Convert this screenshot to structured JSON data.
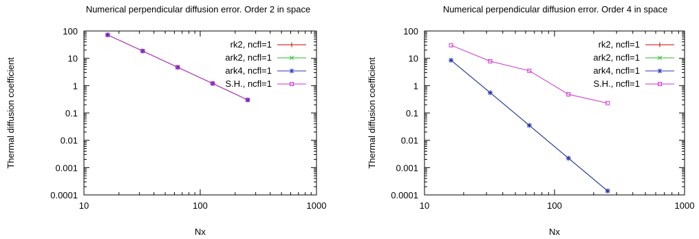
{
  "chart_data": [
    {
      "type": "line",
      "title": "Numerical perpendicular diffusion error. Order 2 in space",
      "xlabel": "Nx",
      "ylabel": "Thermal diffusion coefficient",
      "xscale": "log",
      "yscale": "log",
      "xlim": [
        10,
        1000
      ],
      "ylim": [
        0.0001,
        100
      ],
      "xticks": [
        "10",
        "100",
        "1000"
      ],
      "yticks": [
        "0.0001",
        "0.001",
        "0.01",
        "0.1",
        "1",
        "10",
        "100"
      ],
      "grid": false,
      "legend_position": "top-right",
      "x": [
        16,
        32,
        64,
        128,
        256
      ],
      "series": [
        {
          "name": "rk2, ncfl=1",
          "color": "#cc0000",
          "marker": "plus",
          "values": [
            72,
            18.5,
            4.7,
            1.2,
            0.3
          ]
        },
        {
          "name": "ark2, ncfl=1",
          "color": "#22bb22",
          "marker": "cross",
          "values": [
            72,
            18.5,
            4.7,
            1.2,
            0.3
          ]
        },
        {
          "name": "ark4, ncfl=1",
          "color": "#2233bb",
          "marker": "star",
          "values": [
            72,
            18.5,
            4.7,
            1.2,
            0.3
          ]
        },
        {
          "name": "S.H., ncfl=1",
          "color": "#cc33cc",
          "marker": "square",
          "values": [
            72,
            18.5,
            4.7,
            1.2,
            0.3
          ]
        }
      ]
    },
    {
      "type": "line",
      "title": "Numerical perpendicular diffusion error. Order 4 in space",
      "xlabel": "Nx",
      "ylabel": "Thermal diffusion coefficient",
      "xscale": "log",
      "yscale": "log",
      "xlim": [
        10,
        1000
      ],
      "ylim": [
        0.0001,
        100
      ],
      "xticks": [
        "10",
        "100",
        "1000"
      ],
      "yticks": [
        "0.0001",
        "0.001",
        "0.01",
        "0.1",
        "1",
        "10",
        "100"
      ],
      "grid": false,
      "legend_position": "top-right",
      "x": [
        16,
        32,
        64,
        128,
        256
      ],
      "series": [
        {
          "name": "rk2, ncfl=1",
          "color": "#cc0000",
          "marker": "plus",
          "values": [
            8.5,
            0.55,
            0.035,
            0.0022,
            0.00014
          ]
        },
        {
          "name": "ark2, ncfl=1",
          "color": "#22bb22",
          "marker": "cross",
          "values": [
            8.5,
            0.55,
            0.035,
            0.0022,
            0.00014
          ]
        },
        {
          "name": "ark4, ncfl=1",
          "color": "#2233bb",
          "marker": "star",
          "values": [
            8.5,
            0.55,
            0.035,
            0.0022,
            0.00014
          ]
        },
        {
          "name": "S.H., ncfl=1",
          "color": "#cc33cc",
          "marker": "square",
          "values": [
            30,
            7.8,
            3.5,
            0.48,
            0.23
          ]
        }
      ]
    }
  ]
}
